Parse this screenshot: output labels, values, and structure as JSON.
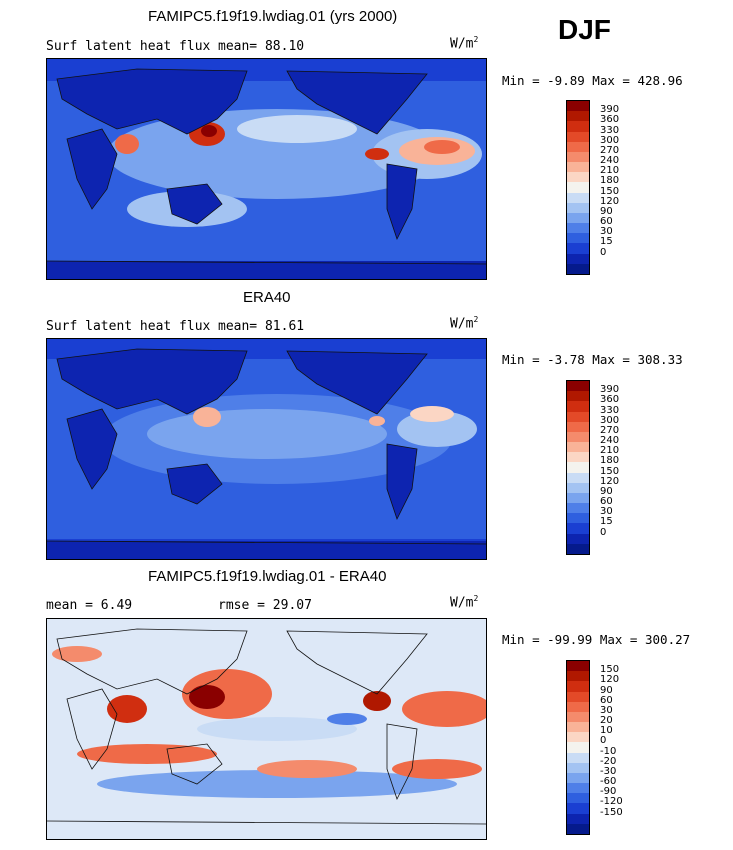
{
  "season": "DJF",
  "panels": [
    {
      "title": "FAMIPC5.f19f19.lwdiag.01 (yrs 2000)",
      "left_text": "Surf latent heat flux",
      "right_text": "mean=  88.10",
      "units": "W/m",
      "units_sup": "2",
      "minmax": "Min =  -9.89 Max = 428.96",
      "colorbar": {
        "labels": [
          "390",
          "360",
          "330",
          "300",
          "270",
          "240",
          "210",
          "180",
          "150",
          "120",
          "90",
          "60",
          "30",
          "15",
          "0"
        ],
        "colors": [
          "#8a0000",
          "#b01800",
          "#d02e10",
          "#e34a28",
          "#ef6a48",
          "#f48b6c",
          "#f9b398",
          "#fbd6c4",
          "#f4f3ee",
          "#c9dcf5",
          "#a3c3f2",
          "#7aa4ee",
          "#4f7fe8",
          "#2f5fdf",
          "#1a3fd2",
          "#0d24b0",
          "#051a8c"
        ]
      }
    },
    {
      "title": "ERA40",
      "left_text": "Surf latent heat flux",
      "right_text": "mean=  81.61",
      "units": "W/m",
      "units_sup": "2",
      "minmax": "Min =  -3.78 Max = 308.33",
      "colorbar": {
        "labels": [
          "390",
          "360",
          "330",
          "300",
          "270",
          "240",
          "210",
          "180",
          "150",
          "120",
          "90",
          "60",
          "30",
          "15",
          "0"
        ],
        "colors": [
          "#8a0000",
          "#b01800",
          "#d02e10",
          "#e34a28",
          "#ef6a48",
          "#f48b6c",
          "#f9b398",
          "#fbd6c4",
          "#f4f3ee",
          "#c9dcf5",
          "#a3c3f2",
          "#7aa4ee",
          "#4f7fe8",
          "#2f5fdf",
          "#1a3fd2",
          "#0d24b0",
          "#051a8c"
        ]
      }
    },
    {
      "title": "FAMIPC5.f19f19.lwdiag.01 - ERA40",
      "left_text": "mean =   6.49",
      "right_text": "rmse =  29.07",
      "units": "W/m",
      "units_sup": "2",
      "minmax": "Min = -99.99 Max = 300.27",
      "colorbar": {
        "labels": [
          "150",
          "120",
          "90",
          "60",
          "30",
          "20",
          "10",
          "0",
          "-10",
          "-20",
          "-30",
          "-60",
          "-90",
          "-120",
          "-150"
        ],
        "colors": [
          "#8a0000",
          "#b01800",
          "#d02e10",
          "#e34a28",
          "#ef6a48",
          "#f48b6c",
          "#f9b398",
          "#fbd6c4",
          "#f4f3ee",
          "#c9dcf5",
          "#a3c3f2",
          "#7aa4ee",
          "#4f7fe8",
          "#2f5fdf",
          "#1a3fd2",
          "#0d24b0",
          "#051a8c"
        ]
      }
    }
  ],
  "colors": {
    "ocean_deep": "#1a3fd2",
    "ocean_mid": "#4f7fe8",
    "ocean_light": "#a3c3f2",
    "land": "#0d24b0",
    "warm": "#ef6a48",
    "hot": "#b01800",
    "neutral": "#f4f3ee"
  }
}
